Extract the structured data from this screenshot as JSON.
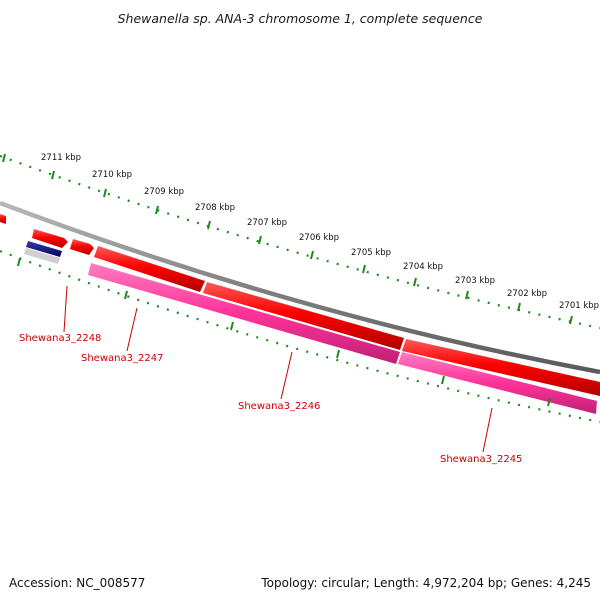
{
  "title": "Shewanella sp. ANA-3 chromosome 1, complete sequence",
  "footer": {
    "accession": "Accession: NC_008577",
    "summary": "Topology: circular; Length: 4,972,204 bp; Genes: 4,245"
  },
  "colors": {
    "backbone": "#808080",
    "forward_gene": "#ff0000",
    "reverse_gene": "#ff3399",
    "tick": "#1e8a1e",
    "label": "#cc0000",
    "small_feature": "#000080"
  },
  "ruler": [
    "2711 kbp",
    "2710 kbp",
    "2709 kbp",
    "2708 kbp",
    "2707 kbp",
    "2706 kbp",
    "2705 kbp",
    "2704 kbp",
    "2703 kbp",
    "2702 kbp",
    "2701 kbp"
  ],
  "gene_labels": [
    "Shewana3_2248",
    "Shewana3_2247",
    "Shewana3_2246",
    "Shewana3_2245"
  ]
}
